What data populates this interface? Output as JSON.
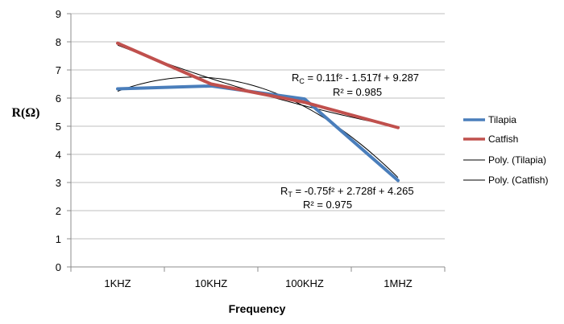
{
  "chart_data": {
    "type": "line",
    "title": "",
    "xlabel": "Frequency",
    "ylabel": "R(Ω)",
    "categories": [
      "1KHZ",
      "10KHZ",
      "100KHZ",
      "1MHZ"
    ],
    "ylim": [
      0,
      9
    ],
    "yticks": [
      "0",
      "1",
      "2",
      "3",
      "4",
      "5",
      "6",
      "7",
      "8",
      "9"
    ],
    "grid": true,
    "legend_position": "right",
    "series": [
      {
        "name": "Tilapia",
        "values": [
          6.33,
          6.43,
          5.97,
          3.07
        ],
        "color": "#4a7ebb"
      },
      {
        "name": "Catfish",
        "values": [
          7.95,
          6.5,
          5.85,
          4.95
        ],
        "color": "#c0504d"
      }
    ],
    "trendlines": [
      {
        "name": "Poly. (Tilapia)",
        "of": "Tilapia",
        "coefficients": [
          -0.75,
          2.728,
          4.265
        ],
        "color": "#000000"
      },
      {
        "name": "Poly. (Catfish)",
        "of": "Catfish",
        "coefficients": [
          0.11,
          -1.517,
          9.287
        ],
        "color": "#000000"
      }
    ],
    "annotations": {
      "catfish_eq": {
        "lead": "R",
        "sub": "C",
        "rest": " = 0.11f² - 1.517f + 9.287"
      },
      "catfish_r2": "R² = 0.985",
      "tilapia_eq": {
        "lead": "R",
        "sub": "T",
        "rest": " = -0.75f² + 2.728f + 4.265"
      },
      "tilapia_r2": "R² = 0.975"
    }
  }
}
